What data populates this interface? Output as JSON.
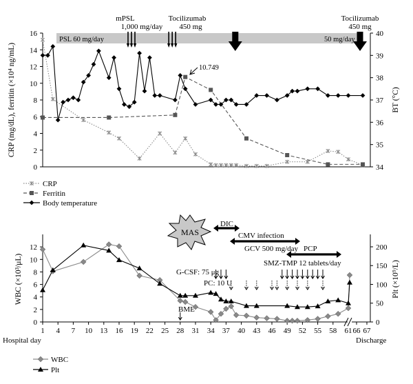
{
  "chart_data": [
    {
      "type": "line",
      "panel": "top",
      "ylabel_left": "CRP (mg/dL), ferritin (×10⁴ ng/mL)",
      "ylabel_right": "BT (°C)",
      "ylim_left": [
        0,
        16
      ],
      "ylim_right": [
        34,
        40
      ],
      "left_ticks": [
        "0",
        "2",
        "4",
        "6",
        "8",
        "10",
        "12",
        "14",
        "16"
      ],
      "right_ticks": [
        "34",
        "35",
        "36",
        "37",
        "38",
        "39",
        "40"
      ],
      "treatment_bar": {
        "psl_start_label": "PSL 60 mg/day",
        "psl_end_label": "50 mg/day",
        "mpsl_label_1": "mPSL",
        "mpsl_label_2": "1,000 mg/day",
        "toci_label_1": "Tocilizumab",
        "toci_label_2": "450 mg",
        "toci2_label_1": "Tocilizumab",
        "toci2_label_2": "450 mg",
        "mpsl_pulse_days": [
          16,
          24
        ],
        "tocilizumab_days": [
          28,
          65
        ]
      },
      "annotation": {
        "label": "10.749",
        "x": 29,
        "y": 10.749
      },
      "series": [
        {
          "name": "CRP",
          "axis": "left",
          "color": "#8a8a8a",
          "x": [
            1,
            3,
            9,
            14,
            16,
            20,
            24,
            27,
            29,
            31,
            34,
            35,
            36,
            37,
            38,
            39,
            41,
            43,
            45,
            49,
            53,
            57,
            59,
            61,
            65
          ],
          "values": [
            15.2,
            8.1,
            5.6,
            4.1,
            3.4,
            1.0,
            4.0,
            1.7,
            3.4,
            1.5,
            0.3,
            0.2,
            0.2,
            0.2,
            0.2,
            0.2,
            0.1,
            0.1,
            0.1,
            0.6,
            0.6,
            1.9,
            1.8,
            0.9,
            0.2
          ]
        },
        {
          "name": "Ferritin",
          "axis": "left",
          "color": "#555555",
          "x": [
            1,
            14,
            27,
            29,
            34,
            41,
            49,
            57,
            65
          ],
          "values": [
            5.9,
            5.9,
            6.2,
            10.749,
            9.2,
            3.4,
            1.4,
            0.3,
            0.3
          ]
        },
        {
          "name": "Body temperature",
          "axis": "right",
          "color": "#000000",
          "x": [
            1,
            2,
            3,
            4,
            5,
            6,
            7,
            8,
            9,
            10,
            11,
            12,
            14,
            15,
            16,
            17,
            18,
            19,
            20,
            21,
            22,
            23,
            24,
            27,
            28,
            29,
            31,
            34,
            35,
            36,
            37,
            38,
            39,
            41,
            43,
            45,
            47,
            49,
            50,
            51,
            53,
            55,
            57,
            59,
            61,
            65
          ],
          "values": [
            39.0,
            39.0,
            39.4,
            36.1,
            36.9,
            37.0,
            37.1,
            37.0,
            37.8,
            38.1,
            38.6,
            39.2,
            38.0,
            38.9,
            37.5,
            36.8,
            36.7,
            36.9,
            39.1,
            37.4,
            38.9,
            37.2,
            37.2,
            37.0,
            38.1,
            37.5,
            36.8,
            37.0,
            36.8,
            36.8,
            37.0,
            37.0,
            36.8,
            36.8,
            37.2,
            37.2,
            37.0,
            37.2,
            37.4,
            37.4,
            37.5,
            37.5,
            37.2,
            37.2,
            37.2,
            37.2
          ]
        }
      ]
    },
    {
      "type": "line",
      "panel": "bottom",
      "ylabel_left": "WBC (×10³/μL)",
      "ylabel_right": "Plt (×10⁹/L)",
      "ylim_left": [
        0,
        14
      ],
      "ylim_right": [
        0,
        233
      ],
      "left_ticks": [
        "0",
        "2",
        "4",
        "6",
        "8",
        "10",
        "12"
      ],
      "left_tick_values": [
        0,
        2,
        4,
        6,
        8,
        10,
        12
      ],
      "right_ticks": [
        "0",
        "50",
        "100",
        "150",
        "200"
      ],
      "right_tick_values": [
        0,
        50,
        100,
        150,
        200
      ],
      "x_ticks": [
        "1",
        "4",
        "7",
        "10",
        "13",
        "16",
        "19",
        "22",
        "25",
        "28",
        "31",
        "34",
        "37",
        "40",
        "43",
        "46",
        "49",
        "52",
        "55",
        "58",
        "61",
        "66",
        "67"
      ],
      "xlabel_left": "Hospital day",
      "xlabel_right": "Discharge",
      "annotations": {
        "mas": "MAS",
        "dic": "DIC",
        "cmv": "CMV infection",
        "gcv": "GCV 500 mg/day",
        "pcp": "PCP",
        "smz": "SMZ-TMP 12 tablets/day",
        "gcsf": "G-CSF: 75 μg",
        "pc": "PC: 10 U",
        "bme": "BME"
      },
      "gcsf_days": [
        35,
        36,
        37
      ],
      "pc_days": [
        38,
        41,
        43,
        46,
        47,
        49,
        51,
        53,
        56
      ],
      "smz_days": [
        48,
        49,
        50,
        51,
        52,
        53,
        54,
        55,
        56
      ],
      "series": [
        {
          "name": "WBC",
          "axis": "left",
          "color": "#8a8a8a",
          "x": [
            1,
            3,
            9,
            14,
            16,
            20,
            24,
            28,
            29,
            31,
            34,
            35,
            36,
            37,
            38,
            39,
            41,
            43,
            45,
            47,
            49,
            50,
            51,
            53,
            55,
            57,
            59,
            61,
            63
          ],
          "values": [
            11.6,
            8.1,
            9.6,
            12.4,
            12.1,
            7.4,
            6.7,
            3.4,
            3.2,
            2.4,
            1.6,
            0.3,
            1.3,
            2.1,
            2.5,
            1.1,
            1.0,
            0.7,
            0.6,
            0.5,
            0.2,
            0.2,
            0.2,
            0.3,
            0.5,
            0.9,
            1.3,
            2.2,
            7.5
          ]
        },
        {
          "name": "Plt",
          "axis": "right",
          "color": "#000000",
          "x": [
            1,
            3,
            9,
            14,
            16,
            20,
            24,
            28,
            29,
            31,
            34,
            35,
            36,
            37,
            38,
            41,
            43,
            49,
            51,
            53,
            55,
            57,
            59,
            61,
            63
          ],
          "values": [
            85,
            138,
            204,
            190,
            165,
            143,
            102,
            70,
            70,
            70,
            78,
            75,
            60,
            55,
            55,
            43,
            43,
            43,
            40,
            40,
            42,
            55,
            58,
            50,
            105
          ]
        }
      ]
    }
  ]
}
